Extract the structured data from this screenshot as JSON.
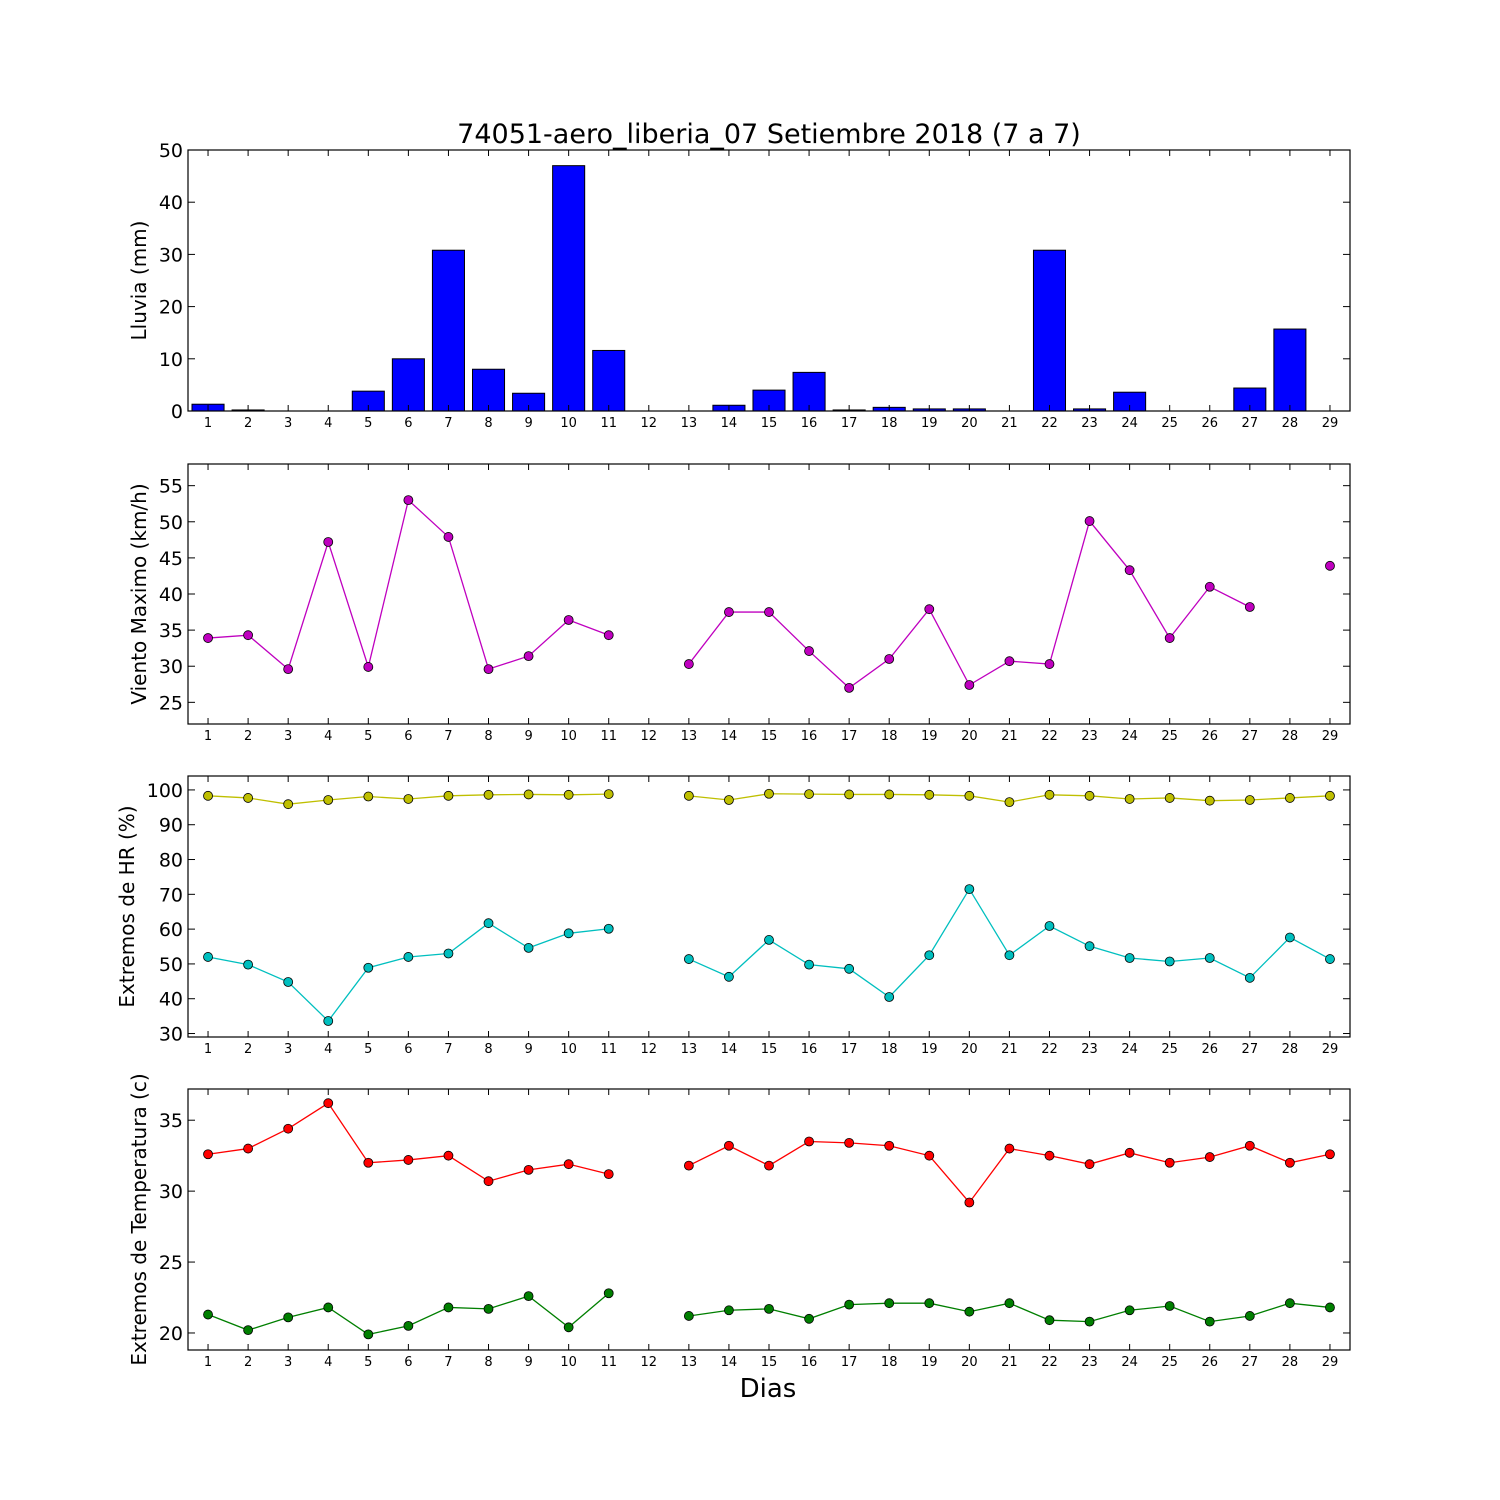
{
  "title": "74051-aero_liberia_07 Setiembre 2018  (7 a 7)",
  "xlabel": "Dias",
  "chart_data": [
    {
      "type": "bar",
      "ylabel": "Lluvia (mm)",
      "ylim": [
        0,
        50
      ],
      "yticks": [
        0,
        10,
        20,
        30,
        40,
        50
      ],
      "x": [
        1,
        2,
        3,
        4,
        5,
        6,
        7,
        8,
        9,
        10,
        11,
        12,
        13,
        14,
        15,
        16,
        17,
        18,
        19,
        20,
        21,
        22,
        23,
        24,
        25,
        26,
        27,
        28,
        29
      ],
      "series": [
        {
          "color": "#0000ff",
          "values": [
            1.3,
            0.2,
            0,
            0,
            3.8,
            10,
            30.8,
            8,
            3.4,
            47,
            11.6,
            0,
            0,
            1.1,
            4,
            7.4,
            0.2,
            0.7,
            0.4,
            0.4,
            0,
            30.8,
            0.4,
            3.6,
            0,
            0,
            4.4,
            15.7,
            0
          ]
        }
      ]
    },
    {
      "type": "line",
      "ylabel": "Viento Maximo (km/h)",
      "ylim": [
        22,
        58
      ],
      "yticks": [
        25,
        30,
        35,
        40,
        45,
        50,
        55
      ],
      "x": [
        1,
        2,
        3,
        4,
        5,
        6,
        7,
        8,
        9,
        10,
        11,
        12,
        13,
        14,
        15,
        16,
        17,
        18,
        19,
        20,
        21,
        22,
        23,
        24,
        25,
        26,
        27,
        28,
        29
      ],
      "series": [
        {
          "color": "#bf00bf",
          "values": [
            33.9,
            34.3,
            29.6,
            47.2,
            29.9,
            53,
            47.9,
            29.6,
            31.4,
            36.4,
            34.3,
            null,
            30.3,
            37.5,
            37.5,
            32.1,
            27,
            31,
            37.9,
            27.4,
            30.7,
            30.3,
            50.1,
            43.3,
            33.9,
            41,
            38.2,
            null,
            43.9
          ]
        }
      ]
    },
    {
      "type": "line",
      "ylabel": "Extremos de HR (%)",
      "ylim": [
        29,
        104
      ],
      "yticks": [
        30,
        40,
        50,
        60,
        70,
        80,
        90,
        100
      ],
      "x": [
        1,
        2,
        3,
        4,
        5,
        6,
        7,
        8,
        9,
        10,
        11,
        12,
        13,
        14,
        15,
        16,
        17,
        18,
        19,
        20,
        21,
        22,
        23,
        24,
        25,
        26,
        27,
        28,
        29
      ],
      "series": [
        {
          "color": "#bfbf00",
          "values": [
            98.3,
            97.7,
            95.9,
            97.1,
            98.1,
            97.4,
            98.3,
            98.6,
            98.7,
            98.6,
            98.8,
            null,
            98.3,
            97.1,
            98.9,
            98.8,
            98.7,
            98.7,
            98.6,
            98.3,
            96.5,
            98.6,
            98.3,
            97.4,
            97.7,
            96.9,
            97.1,
            97.7,
            98.3
          ]
        },
        {
          "color": "#00bfbf",
          "values": [
            52,
            49.8,
            44.8,
            33.6,
            48.9,
            52,
            53,
            61.7,
            54.6,
            58.8,
            60.1,
            null,
            51.4,
            46.3,
            56.9,
            49.8,
            48.6,
            40.5,
            52.5,
            71.5,
            52.5,
            60.9,
            55.1,
            51.7,
            50.7,
            51.7,
            46,
            57.6,
            51.4
          ]
        }
      ]
    },
    {
      "type": "line",
      "ylabel": "Extremos de Temperatura (c)",
      "ylim": [
        18.8,
        37.2
      ],
      "yticks": [
        20,
        25,
        30,
        35
      ],
      "x": [
        1,
        2,
        3,
        4,
        5,
        6,
        7,
        8,
        9,
        10,
        11,
        12,
        13,
        14,
        15,
        16,
        17,
        18,
        19,
        20,
        21,
        22,
        23,
        24,
        25,
        26,
        27,
        28,
        29
      ],
      "series": [
        {
          "color": "#ff0000",
          "values": [
            32.6,
            33,
            34.4,
            36.2,
            32,
            32.2,
            32.5,
            30.7,
            31.5,
            31.9,
            31.2,
            null,
            31.8,
            33.2,
            31.8,
            33.5,
            33.4,
            33.2,
            32.5,
            29.2,
            33,
            32.5,
            31.9,
            32.7,
            32,
            32.4,
            33.2,
            32,
            32.6
          ]
        },
        {
          "color": "#007f00",
          "values": [
            21.3,
            20.2,
            21.1,
            21.8,
            19.9,
            20.5,
            21.8,
            21.7,
            22.6,
            20.4,
            22.8,
            null,
            21.2,
            21.6,
            21.7,
            21,
            22,
            22.1,
            22.1,
            21.5,
            22.1,
            20.9,
            20.8,
            21.6,
            21.9,
            20.8,
            21.2,
            22.1,
            21.8
          ]
        }
      ]
    }
  ]
}
